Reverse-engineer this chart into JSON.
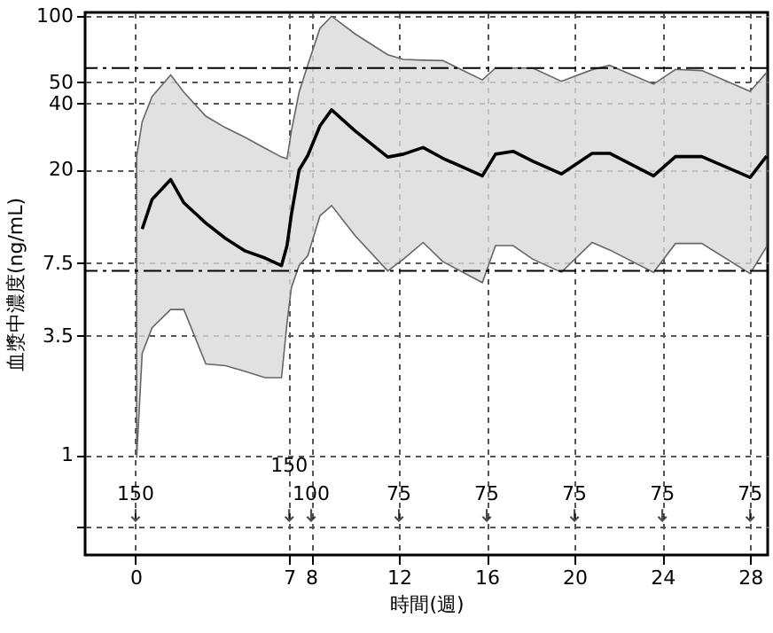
{
  "chart_data": {
    "type": "line",
    "xlabel": "時間(週)",
    "ylabel": "血漿中濃度(ng/mL)",
    "xlim": [
      -2.3,
      28.8
    ],
    "xticks": [
      0,
      7,
      8,
      12,
      16,
      20,
      24,
      28
    ],
    "ylim": [
      0.35,
      104
    ],
    "yticks": [
      {
        "value": 0.47,
        "label": null
      },
      1,
      3.5,
      7.5,
      20,
      40,
      50,
      100
    ],
    "log": "y",
    "grid": true,
    "marker": "none",
    "line_style": "solid",
    "series": [
      {
        "color": "#000000",
        "x": [
          0.05,
          0.3,
          0.75,
          1.6,
          2.2,
          3.2,
          4.1,
          5.0,
          5.9,
          6.65,
          6.9,
          7.1,
          7.45,
          7.85,
          8.4,
          8.93,
          10.0,
          11.49,
          12.2,
          13.1,
          14.0,
          15.8,
          16.4,
          17.2,
          18.1,
          19.4,
          20.8,
          21.6,
          23.6,
          24.6,
          25.8,
          28.0,
          28.75
        ],
        "values": [
          null,
          10.7,
          14.6,
          18,
          14.1,
          11.4,
          9.7,
          8.5,
          7.9,
          7.3,
          9,
          12.5,
          19.9,
          23.2,
          31.6,
          37.4,
          30,
          22.8,
          23.5,
          25.2,
          22.5,
          18.7,
          23.5,
          24.2,
          21.8,
          19.1,
          23.7,
          23.7,
          18.7,
          22.9,
          22.9,
          18.4,
          23
        ],
        "lower": [
          0.97,
          2.9,
          3.8,
          4.6,
          4.6,
          2.6,
          2.55,
          2.4,
          2.25,
          2.25,
          4,
          5.8,
          7.3,
          8.1,
          12.3,
          13.7,
          10,
          6.9,
          7.8,
          9.3,
          7.6,
          6.1,
          9,
          9,
          7.8,
          6.8,
          9.3,
          8.6,
          6.8,
          9.2,
          9.2,
          6.7,
          8.9
        ],
        "upper": [
          23,
          33,
          43,
          54,
          45,
          35,
          31,
          28,
          25,
          22.8,
          22.4,
          30,
          45,
          60,
          88,
          100,
          83,
          66.7,
          63.5,
          63,
          62.7,
          51.2,
          58,
          58,
          58,
          50.5,
          57,
          59.7,
          49,
          57.2,
          56.5,
          45.4,
          55.3
        ]
      }
    ],
    "ref_lines": [
      {
        "axis": "y",
        "value": 58,
        "line_style": "dashed"
      },
      {
        "axis": "y",
        "value": 6.9,
        "line_style": "dashed"
      }
    ],
    "annotations": [
      "150",
      "150",
      "100",
      "75",
      "75",
      "75",
      "75",
      "75"
    ]
  }
}
